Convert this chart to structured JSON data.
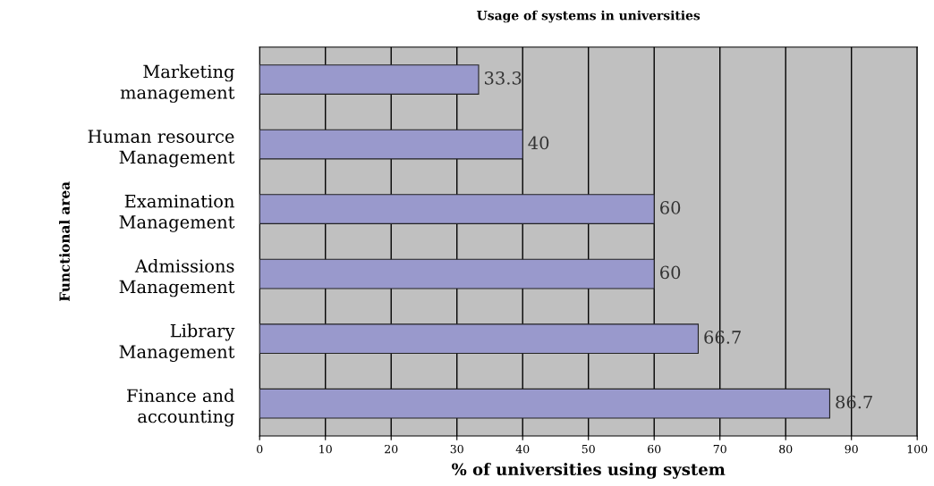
{
  "chart_data": {
    "type": "bar",
    "orientation": "horizontal",
    "title": "Usage of systems in universities",
    "xlabel": "% of universities using system",
    "ylabel": "Functional area",
    "categories": [
      "Marketing\nmanagement",
      "Human resource\nManagement",
      "Examination\nManagement",
      "Admissions\nManagement",
      "Library\nManagement",
      "Finance and\naccounting"
    ],
    "values": [
      33.3,
      40,
      60,
      60,
      66.7,
      86.7
    ],
    "color": "#9999cc",
    "xlim": [
      0,
      100
    ],
    "xticks": [
      0,
      10,
      20,
      30,
      40,
      50,
      60,
      70,
      80,
      90,
      100
    ],
    "grid": "x",
    "data_labels": true
  }
}
